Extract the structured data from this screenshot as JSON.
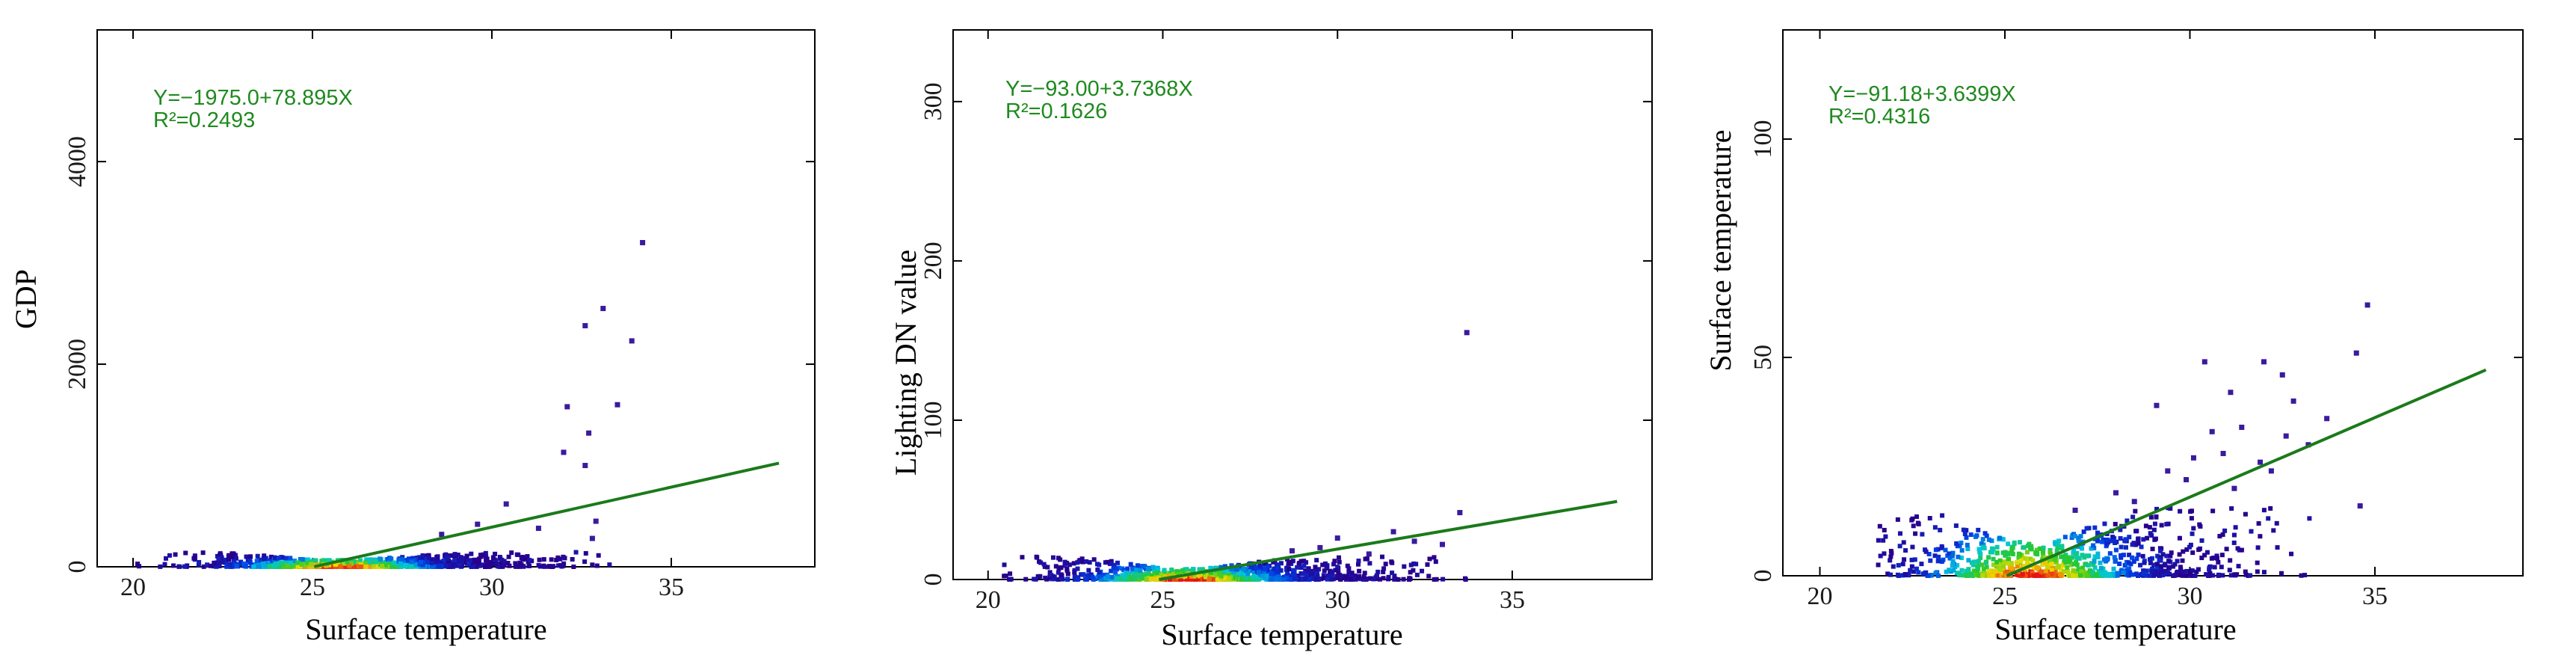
{
  "chart_data": [
    {
      "type": "scatter",
      "xlabel": "Surface temperature",
      "ylabel": "GDP",
      "xlim": [
        19,
        39
      ],
      "ylim": [
        0,
        5300
      ],
      "xticks": [
        20,
        25,
        30,
        35
      ],
      "yticks": [
        0,
        2000,
        4000
      ],
      "equation": "Y=−1975.0+78.895X",
      "r_squared": "R²=0.2493",
      "fit_line": {
        "intercept": -1975.0,
        "slope": 78.895,
        "x_range": [
          25.05,
          38
        ]
      },
      "scatter_cloud": {
        "x_range": [
          20,
          33.5
        ],
        "y_max": 120
      },
      "outliers": [
        {
          "x": 34.2,
          "y": 3200
        },
        {
          "x": 33.1,
          "y": 2550
        },
        {
          "x": 32.6,
          "y": 2380
        },
        {
          "x": 33.9,
          "y": 2230
        },
        {
          "x": 33.5,
          "y": 1600
        },
        {
          "x": 32.1,
          "y": 1580
        },
        {
          "x": 32.7,
          "y": 1320
        },
        {
          "x": 32.0,
          "y": 1130
        },
        {
          "x": 32.6,
          "y": 1000
        },
        {
          "x": 30.4,
          "y": 620
        },
        {
          "x": 32.9,
          "y": 450
        },
        {
          "x": 29.6,
          "y": 420
        },
        {
          "x": 31.3,
          "y": 380
        },
        {
          "x": 28.6,
          "y": 320
        },
        {
          "x": 32.8,
          "y": 280
        }
      ]
    },
    {
      "type": "scatter",
      "xlabel": "Surface temperature",
      "ylabel": "Lighting DN value",
      "xlim": [
        19,
        39
      ],
      "ylim": [
        0,
        345
      ],
      "xticks": [
        20,
        25,
        30,
        35
      ],
      "yticks": [
        0,
        100,
        200,
        300
      ],
      "equation": "Y=−93.00+3.7368X",
      "r_squared": "R²=0.1626",
      "fit_line": {
        "intercept": -93.0,
        "slope": 3.7368,
        "x_range": [
          24.89,
          38
        ]
      },
      "scatter_cloud": {
        "x_range": [
          20,
          33.8
        ],
        "y_max": 12
      },
      "outliers": [
        {
          "x": 33.7,
          "y": 155
        },
        {
          "x": 33.5,
          "y": 42
        },
        {
          "x": 31.6,
          "y": 30
        },
        {
          "x": 30.0,
          "y": 26
        },
        {
          "x": 32.2,
          "y": 24
        },
        {
          "x": 28.7,
          "y": 18
        },
        {
          "x": 29.5,
          "y": 20
        },
        {
          "x": 33.0,
          "y": 22
        },
        {
          "x": 30.9,
          "y": 16
        }
      ]
    },
    {
      "type": "scatter",
      "xlabel": "Surface temperature",
      "ylabel": "Surface temperature",
      "xlim": [
        19,
        39
      ],
      "ylim": [
        0,
        125
      ],
      "xticks": [
        20,
        25,
        30,
        35
      ],
      "yticks": [
        0,
        50,
        100
      ],
      "equation": "Y=−91.18+3.6399X",
      "r_squared": "R²=0.4316",
      "fit_line": {
        "intercept": -91.18,
        "slope": 3.6399,
        "x_range": [
          25.05,
          38
        ]
      },
      "scatter_cloud": {
        "x_range": [
          21.5,
          33.5
        ],
        "y_max": 14
      },
      "outliers": [
        {
          "x": 34.8,
          "y": 62
        },
        {
          "x": 34.5,
          "y": 51
        },
        {
          "x": 32.0,
          "y": 49
        },
        {
          "x": 30.4,
          "y": 49
        },
        {
          "x": 32.5,
          "y": 46
        },
        {
          "x": 31.1,
          "y": 42
        },
        {
          "x": 32.8,
          "y": 40
        },
        {
          "x": 29.1,
          "y": 39
        },
        {
          "x": 30.6,
          "y": 33
        },
        {
          "x": 31.4,
          "y": 34
        },
        {
          "x": 33.2,
          "y": 30
        },
        {
          "x": 30.1,
          "y": 27
        },
        {
          "x": 31.9,
          "y": 26
        },
        {
          "x": 33.7,
          "y": 36
        },
        {
          "x": 28.0,
          "y": 19
        },
        {
          "x": 29.9,
          "y": 22
        },
        {
          "x": 32.2,
          "y": 24
        },
        {
          "x": 34.6,
          "y": 16
        },
        {
          "x": 26.9,
          "y": 15
        },
        {
          "x": 28.5,
          "y": 17
        },
        {
          "x": 31.2,
          "y": 20
        },
        {
          "x": 29.4,
          "y": 24
        },
        {
          "x": 30.9,
          "y": 28
        },
        {
          "x": 32.6,
          "y": 32
        }
      ]
    }
  ]
}
